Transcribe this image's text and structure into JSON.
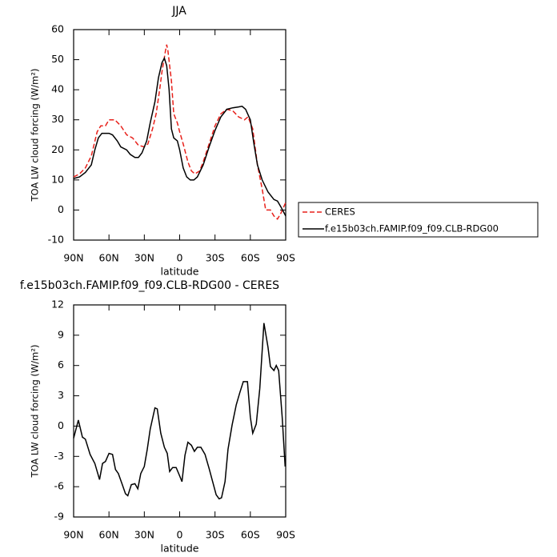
{
  "chart_data": [
    {
      "type": "line",
      "title": "JJA",
      "x_label": "latitude",
      "y_label": "TOA LW cloud forcing (W/m²)",
      "xlim": [
        90,
        -90
      ],
      "xticks": [
        {
          "value": 90,
          "label": "90N"
        },
        {
          "value": 60,
          "label": "60N"
        },
        {
          "value": 30,
          "label": "30N"
        },
        0,
        {
          "value": -30,
          "label": "30S"
        },
        {
          "value": -60,
          "label": "60S"
        },
        {
          "value": -90,
          "label": "90S"
        }
      ],
      "ylim": [
        -10,
        60
      ],
      "yticks": [
        -10,
        0,
        10,
        20,
        30,
        40,
        50,
        60
      ],
      "legend": "outside-right",
      "series": [
        {
          "name": "CERES",
          "color": "#e8201a",
          "dashed": true,
          "x": [
            90,
            85,
            80,
            75,
            70,
            67,
            63,
            60,
            55,
            50,
            45,
            40,
            35,
            30,
            27,
            23,
            20,
            17,
            15,
            12,
            11,
            10,
            7,
            5,
            2,
            0,
            -3,
            -7,
            -10,
            -13,
            -17,
            -20,
            -25,
            -30,
            -35,
            -40,
            -45,
            -50,
            -55,
            -58,
            -62,
            -66,
            -70,
            -73,
            -77,
            -80,
            -83,
            -86,
            -90
          ],
          "values": [
            11,
            12,
            14,
            18,
            26,
            28,
            28,
            30,
            30,
            28,
            25,
            24,
            21.5,
            21,
            22,
            27,
            32,
            40,
            46,
            53,
            55,
            53,
            43,
            32,
            29,
            26,
            22,
            16,
            13,
            12,
            13,
            16,
            22,
            28,
            32,
            33.5,
            33,
            31,
            30,
            31,
            27,
            15,
            7,
            0,
            0,
            -2,
            -3,
            -1,
            2.5
          ]
        },
        {
          "name": "f.e15b03ch.FAMIP.f09_f09.CLB-RDG00",
          "color": "#000000",
          "dashed": false,
          "x": [
            90,
            85,
            80,
            75,
            72,
            69,
            66,
            60,
            57,
            53,
            50,
            45,
            42,
            38,
            35,
            32,
            28,
            25,
            21,
            18,
            15,
            13,
            11,
            9,
            7,
            5,
            2,
            0,
            -3,
            -6,
            -9,
            -12,
            -15,
            -20,
            -25,
            -30,
            -35,
            -40,
            -45,
            -50,
            -53,
            -56,
            -60,
            -63,
            -66,
            -70,
            -75,
            -80,
            -83,
            -86,
            -90
          ],
          "values": [
            10.5,
            11,
            12.5,
            15,
            20,
            24,
            25.5,
            25.5,
            25,
            23,
            21,
            20,
            18.5,
            17.5,
            17.5,
            19,
            23,
            29,
            36,
            44,
            49,
            50.5,
            48,
            40,
            27,
            24,
            23,
            20,
            14,
            11,
            10,
            10,
            11,
            15,
            21,
            26.5,
            31,
            33.5,
            34,
            34.3,
            34.5,
            33.5,
            30,
            22,
            15,
            10,
            6,
            3.5,
            3,
            1,
            -2
          ]
        }
      ]
    },
    {
      "type": "line",
      "title": "f.e15b03ch.FAMIP.f09_f09.CLB-RDG00 - CERES",
      "x_label": "latitude",
      "y_label": "TOA LW cloud forcing (W/m²)",
      "xlim": [
        90,
        -90
      ],
      "xticks": [
        {
          "value": 90,
          "label": "90N"
        },
        {
          "value": 60,
          "label": "60N"
        },
        {
          "value": 30,
          "label": "30N"
        },
        0,
        {
          "value": -30,
          "label": "30S"
        },
        {
          "value": -60,
          "label": "60S"
        },
        {
          "value": -90,
          "label": "90S"
        }
      ],
      "ylim": [
        -9,
        12
      ],
      "yticks": [
        -9,
        -6,
        -3,
        0,
        3,
        6,
        9,
        12
      ],
      "series": [
        {
          "color": "#000000",
          "dashed": false,
          "x": [
            90,
            86,
            82.5,
            80,
            76,
            72,
            68,
            65.5,
            63,
            60,
            57,
            54.5,
            52,
            49,
            46,
            44,
            41,
            38,
            35.5,
            33,
            30,
            27.5,
            25,
            21,
            19,
            16,
            13,
            10.5,
            8.5,
            6,
            3,
            0.5,
            -2,
            -4.5,
            -7,
            -10,
            -12.5,
            -15,
            -18,
            -21.5,
            -25,
            -28,
            -31,
            -33.5,
            -35.5,
            -38.5,
            -41,
            -44.5,
            -48,
            -51,
            -54,
            -57.5,
            -60,
            -62,
            -65,
            -68,
            -71.5,
            -75,
            -77,
            -80,
            -82,
            -84,
            -87,
            -89.5
          ],
          "values": [
            -1.2,
            0.6,
            -1.1,
            -1.3,
            -2.8,
            -3.7,
            -5.3,
            -3.7,
            -3.5,
            -2.7,
            -2.8,
            -4.3,
            -4.7,
            -5.7,
            -6.7,
            -6.9,
            -5.8,
            -5.7,
            -6.2,
            -4.7,
            -4.0,
            -2.3,
            -0.3,
            1.8,
            1.7,
            -0.7,
            -2.1,
            -2.7,
            -4.5,
            -4.1,
            -4.1,
            -4.8,
            -5.5,
            -2.9,
            -1.6,
            -1.9,
            -2.5,
            -2.1,
            -2.1,
            -2.8,
            -4.2,
            -5.5,
            -6.8,
            -7.2,
            -7.1,
            -5.5,
            -2.3,
            0.1,
            2.1,
            3.3,
            4.4,
            4.4,
            0.9,
            -0.7,
            0.2,
            3.7,
            10.2,
            7.8,
            5.9,
            5.5,
            6.0,
            5.5,
            0.9,
            -4.0
          ]
        }
      ]
    }
  ]
}
